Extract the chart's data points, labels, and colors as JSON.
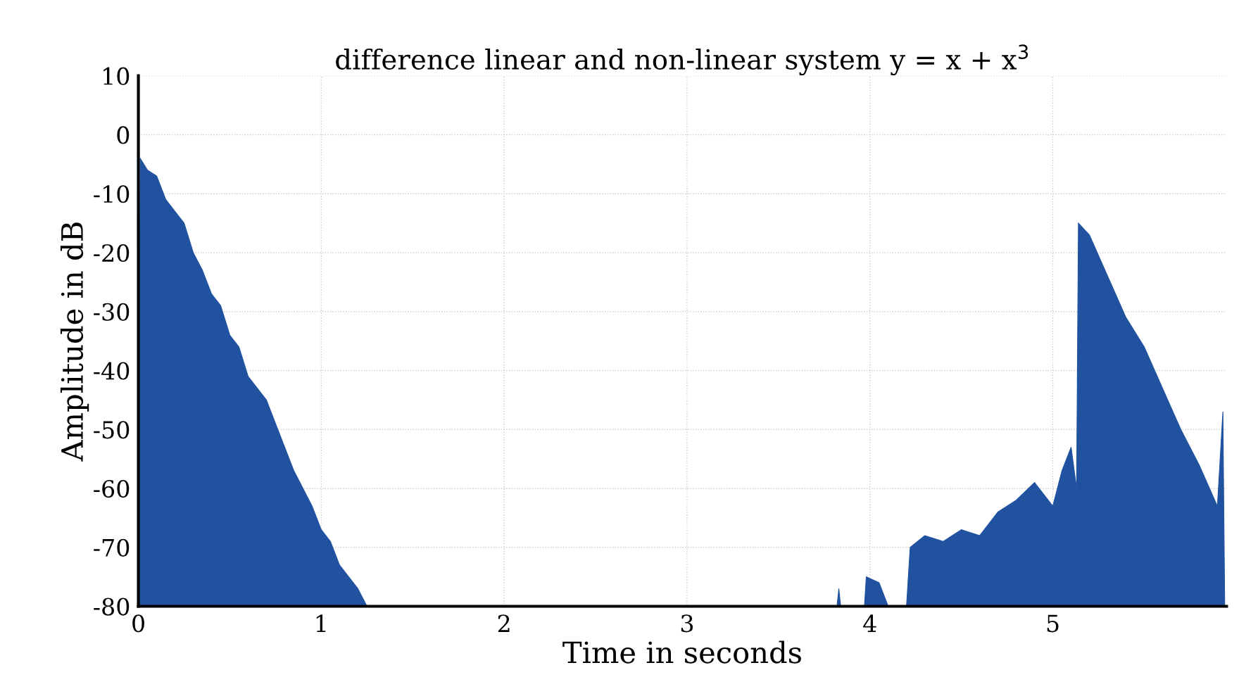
{
  "chart_data": {
    "type": "area",
    "title": "difference linear and non-linear system y = x + x$^{3}$",
    "xlabel": "Time in seconds",
    "ylabel": "Amplitude in dB",
    "x": [
      0,
      0.01,
      0.05,
      0.1,
      0.15,
      0.2,
      0.25,
      0.3,
      0.35,
      0.4,
      0.45,
      0.5,
      0.55,
      0.6,
      0.65,
      0.7,
      0.75,
      0.8,
      0.85,
      0.9,
      0.95,
      1.0,
      1.05,
      1.1,
      1.15,
      1.2,
      1.25,
      3.7,
      3.82,
      3.83,
      3.84,
      3.97,
      3.98,
      4.05,
      4.1,
      4.2,
      4.22,
      4.3,
      4.4,
      4.5,
      4.6,
      4.7,
      4.8,
      4.9,
      5.0,
      5.05,
      5.1,
      5.13,
      5.14,
      5.2,
      5.3,
      5.4,
      5.5,
      5.6,
      5.7,
      5.8,
      5.9,
      5.93,
      5.94
    ],
    "series": [
      {
        "color": "#2052a0",
        "values": [
          -80,
          -4,
          -6,
          -7,
          -11,
          -13,
          -15,
          -20,
          -23,
          -27,
          -29,
          -34,
          -36,
          -41,
          -43,
          -45,
          -49,
          -53,
          -57,
          -60,
          -63,
          -67,
          -69,
          -73,
          -75,
          -77,
          -80,
          -80,
          -80,
          -77,
          -80,
          -80,
          -75,
          -76,
          -80,
          -80,
          -70,
          -68,
          -69,
          -67,
          -68,
          -64,
          -62,
          -59,
          -63,
          -57,
          -53,
          -60,
          -15,
          -17,
          -24,
          -31,
          -36,
          -43,
          -50,
          -56,
          -63,
          -47,
          -80
        ]
      }
    ],
    "xlim": [
      0,
      5.95
    ],
    "ylim": [
      -80,
      10
    ],
    "xticks": [
      0,
      1,
      2,
      3,
      4,
      5
    ],
    "yticks": [
      10,
      0,
      -10,
      -20,
      -30,
      -40,
      -50,
      -60,
      -70,
      -80
    ],
    "grid": true
  }
}
